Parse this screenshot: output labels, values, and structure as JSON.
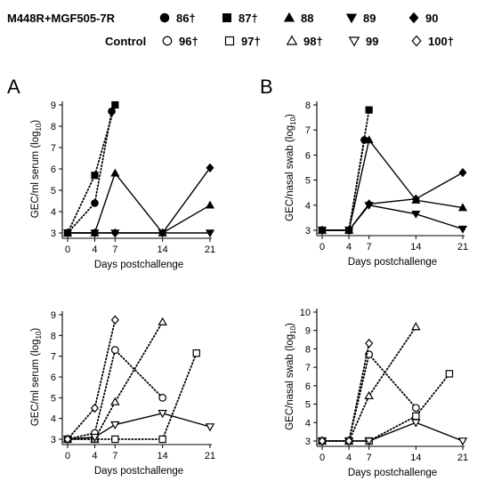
{
  "legend": {
    "groups": [
      {
        "label": "M448R+MGF505-7R",
        "items": [
          {
            "marker": "filled-circle",
            "label": "86†"
          },
          {
            "marker": "filled-square",
            "label": "87†"
          },
          {
            "marker": "filled-triangle-up",
            "label": "88"
          },
          {
            "marker": "filled-triangle-down",
            "label": "89"
          },
          {
            "marker": "filled-diamond",
            "label": "90"
          }
        ]
      },
      {
        "label": "Control",
        "items": [
          {
            "marker": "open-circle",
            "label": "96†"
          },
          {
            "marker": "open-square",
            "label": "97†"
          },
          {
            "marker": "open-triangle-up",
            "label": "98†"
          },
          {
            "marker": "open-triangle-down",
            "label": "99"
          },
          {
            "marker": "open-diamond",
            "label": "100†"
          }
        ]
      }
    ]
  },
  "panel_labels": [
    "A",
    "B"
  ],
  "chart_data": [
    {
      "type": "line",
      "panel": "A-top",
      "xlabel": "Days postchallenge",
      "ylabel": "GEC/ml serum (log",
      "ylabel_sub": "10",
      "ylabel_end": ")",
      "xticks": [
        0,
        4,
        7,
        14,
        21
      ],
      "yticks": [
        3,
        4,
        5,
        6,
        7,
        8,
        9
      ],
      "xlim": [
        0,
        21
      ],
      "ylim": [
        3,
        9
      ],
      "series": [
        {
          "marker": "filled-circle",
          "style": "dotted",
          "points": [
            [
              0,
              3
            ],
            [
              4,
              4.4
            ],
            [
              6.5,
              8.7
            ]
          ]
        },
        {
          "marker": "filled-square",
          "style": "dotted",
          "points": [
            [
              0,
              3
            ],
            [
              4,
              5.7
            ],
            [
              7,
              9.0
            ]
          ]
        },
        {
          "marker": "filled-triangle-up",
          "style": "solid",
          "points": [
            [
              0,
              3
            ],
            [
              4,
              3
            ],
            [
              7,
              5.8
            ],
            [
              14,
              3
            ],
            [
              21,
              4.3
            ]
          ]
        },
        {
          "marker": "filled-triangle-down",
          "style": "solid",
          "points": [
            [
              0,
              3
            ],
            [
              4,
              3
            ],
            [
              7,
              3
            ],
            [
              14,
              3
            ],
            [
              21,
              3
            ]
          ]
        },
        {
          "marker": "filled-diamond",
          "style": "solid",
          "points": [
            [
              0,
              3
            ],
            [
              4,
              3
            ],
            [
              7,
              3
            ],
            [
              14,
              3
            ],
            [
              21,
              6.05
            ]
          ]
        }
      ]
    },
    {
      "type": "line",
      "panel": "B-top",
      "xlabel": "Days postchallenge",
      "ylabel": "GEC/nasal swab (log",
      "ylabel_sub": "10",
      "ylabel_end": ")",
      "xticks": [
        0,
        4,
        7,
        14,
        21
      ],
      "yticks": [
        3,
        4,
        5,
        6,
        7,
        8
      ],
      "xlim": [
        0,
        21
      ],
      "ylim": [
        3,
        8
      ],
      "series": [
        {
          "marker": "filled-circle",
          "style": "dotted",
          "points": [
            [
              0,
              3
            ],
            [
              4,
              3
            ],
            [
              6.3,
              6.6
            ]
          ]
        },
        {
          "marker": "filled-square",
          "style": "dotted",
          "points": [
            [
              0,
              3
            ],
            [
              4,
              3
            ],
            [
              7,
              7.8
            ]
          ]
        },
        {
          "marker": "filled-triangle-up",
          "style": "solid",
          "points": [
            [
              0,
              3
            ],
            [
              4,
              3
            ],
            [
              7,
              6.6
            ],
            [
              14,
              4.2
            ],
            [
              21,
              3.9
            ]
          ]
        },
        {
          "marker": "filled-triangle-down",
          "style": "solid",
          "points": [
            [
              0,
              3
            ],
            [
              4,
              3
            ],
            [
              7,
              4.0
            ],
            [
              14,
              3.65
            ],
            [
              21,
              3.05
            ]
          ]
        },
        {
          "marker": "filled-diamond",
          "style": "solid",
          "points": [
            [
              0,
              3
            ],
            [
              4,
              3
            ],
            [
              7,
              4.05
            ],
            [
              14,
              4.25
            ],
            [
              21,
              5.3
            ]
          ]
        }
      ]
    },
    {
      "type": "line",
      "panel": "A-bottom",
      "xlabel": "Days postchallenge",
      "ylabel": "GEC/ml serum (log",
      "ylabel_sub": "10",
      "ylabel_end": ")",
      "xticks": [
        0,
        4,
        7,
        14,
        21
      ],
      "yticks": [
        3,
        4,
        5,
        6,
        7,
        8,
        9
      ],
      "xlim": [
        0,
        21
      ],
      "ylim": [
        3,
        9
      ],
      "series": [
        {
          "marker": "open-circle",
          "style": "dotted",
          "points": [
            [
              0,
              3
            ],
            [
              4,
              3.3
            ],
            [
              7,
              7.3
            ],
            [
              14,
              5.0
            ]
          ]
        },
        {
          "marker": "open-square",
          "style": "dotted",
          "points": [
            [
              0,
              3
            ],
            [
              4,
              3
            ],
            [
              7,
              3
            ],
            [
              14,
              3
            ],
            [
              19,
              7.15
            ]
          ]
        },
        {
          "marker": "open-triangle-up",
          "style": "dotted",
          "points": [
            [
              0,
              3
            ],
            [
              4,
              3
            ],
            [
              7,
              4.8
            ],
            [
              14,
              8.65
            ]
          ]
        },
        {
          "marker": "open-triangle-down",
          "style": "solid",
          "points": [
            [
              0,
              3
            ],
            [
              4,
              3.1
            ],
            [
              7,
              3.7
            ],
            [
              14,
              4.25
            ],
            [
              21,
              3.6
            ]
          ]
        },
        {
          "marker": "open-diamond",
          "style": "dotted",
          "points": [
            [
              0,
              3
            ],
            [
              4,
              4.5
            ],
            [
              7,
              8.75
            ]
          ]
        }
      ]
    },
    {
      "type": "line",
      "panel": "B-bottom",
      "xlabel": "Days postchallenge",
      "ylabel": "GEC/nasal swab (log",
      "ylabel_sub": "10",
      "ylabel_end": ")",
      "xticks": [
        0,
        4,
        7,
        14,
        21
      ],
      "yticks": [
        3,
        4,
        5,
        6,
        7,
        8,
        9,
        10
      ],
      "xlim": [
        0,
        21
      ],
      "ylim": [
        3,
        10
      ],
      "series": [
        {
          "marker": "open-circle",
          "style": "dotted",
          "points": [
            [
              0,
              3
            ],
            [
              4,
              3
            ],
            [
              7,
              7.7
            ],
            [
              14,
              4.8
            ]
          ]
        },
        {
          "marker": "open-square",
          "style": "dotted",
          "points": [
            [
              0,
              3
            ],
            [
              4,
              3
            ],
            [
              7,
              3
            ],
            [
              14,
              4.35
            ],
            [
              19,
              6.65
            ]
          ]
        },
        {
          "marker": "open-triangle-up",
          "style": "dotted",
          "points": [
            [
              0,
              3
            ],
            [
              4,
              3
            ],
            [
              7,
              5.45
            ],
            [
              14,
              9.2
            ]
          ]
        },
        {
          "marker": "open-triangle-down",
          "style": "solid",
          "points": [
            [
              0,
              3
            ],
            [
              4,
              3
            ],
            [
              7,
              3
            ],
            [
              14,
              4.0
            ],
            [
              21,
              3.0
            ]
          ]
        },
        {
          "marker": "open-diamond",
          "style": "dotted",
          "points": [
            [
              0,
              3
            ],
            [
              4,
              3
            ],
            [
              7,
              8.3
            ]
          ]
        }
      ]
    }
  ]
}
